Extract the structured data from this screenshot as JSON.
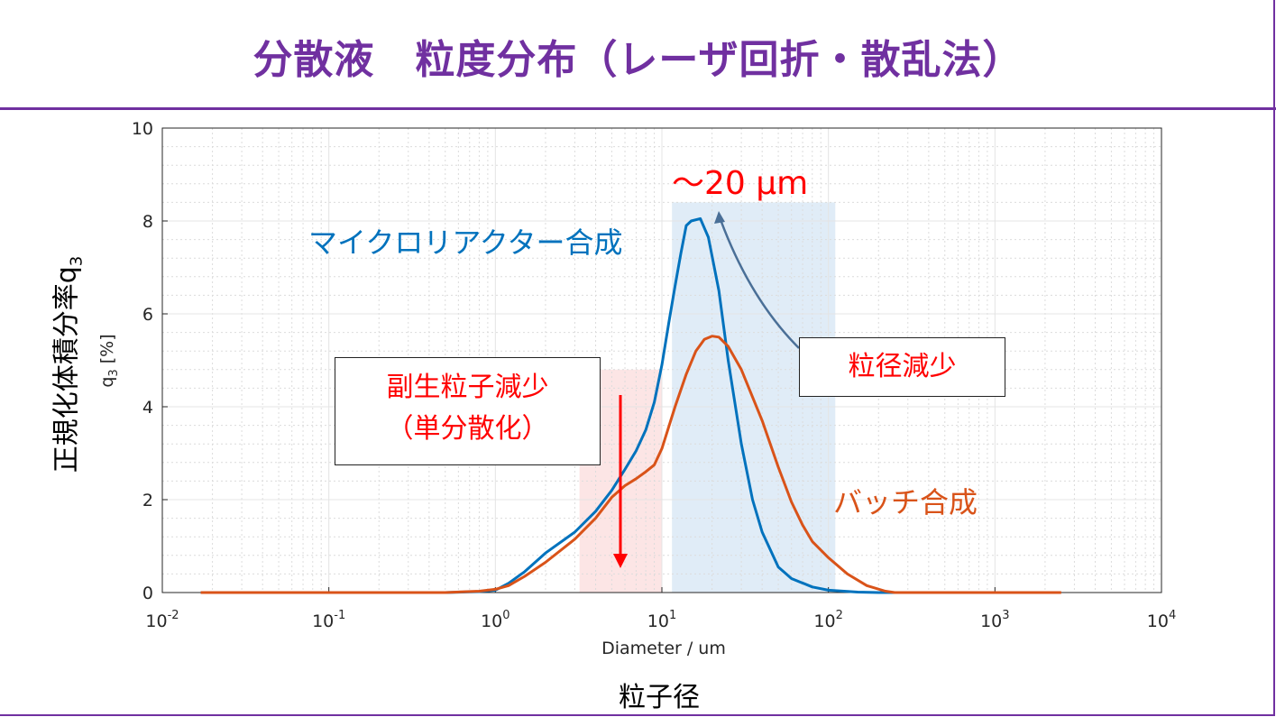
{
  "title": "分散液　粒度分布（レーザ回折・散乱法）",
  "y_axis_jp_main": "正規化体積分率q",
  "y_axis_jp_sub": "3",
  "x_axis_jp": "粒子径",
  "annotations": {
    "micro_label": "マイクロリアクター合成",
    "batch_label": "バッチ合成",
    "size_label": "～20 μm",
    "side_box_line1": "副生粒子減少",
    "side_box_line2": "（単分散化）",
    "size_box": "粒径減少"
  },
  "colors": {
    "title": "#7030a0",
    "micro": "#0072bd",
    "batch": "#d95319",
    "annotation": "#ff0000",
    "blue_band": "#dbe9f6",
    "red_band": "#fbe0e0"
  },
  "chart_data": {
    "type": "line",
    "title": "",
    "xlabel": "Diameter / um",
    "ylabel": "q3 [%]",
    "xscale": "log",
    "xlim": [
      0.01,
      10000
    ],
    "ylim": [
      0,
      10
    ],
    "grid": true,
    "xticks": [
      "10-2",
      "10-1",
      "100",
      "101",
      "102",
      "103",
      "104"
    ],
    "yticks": [
      "0",
      "2",
      "4",
      "6",
      "8",
      "10"
    ],
    "bands": [
      {
        "x0": 3.2,
        "x1": 10,
        "y1": 4.8,
        "color": "red"
      },
      {
        "x0": 11.5,
        "x1": 110,
        "y1": 8.4,
        "color": "blue"
      }
    ],
    "series": [
      {
        "name": "マイクロリアクター合成",
        "color": "#0072bd",
        "x": [
          0.017,
          0.1,
          0.5,
          0.8,
          1.0,
          1.2,
          1.5,
          2.0,
          3.0,
          4.0,
          5.0,
          6.0,
          7.0,
          8.0,
          9.0,
          10.0,
          11.0,
          12.0,
          13.0,
          14.0,
          15.0,
          17.0,
          19.0,
          22.0,
          25.0,
          30.0,
          35.0,
          40.0,
          50.0,
          60.0,
          80.0,
          100.0,
          150.0,
          200.0,
          250.0
        ],
        "y": [
          0.0,
          0.0,
          0.0,
          0.02,
          0.05,
          0.2,
          0.45,
          0.85,
          1.3,
          1.75,
          2.2,
          2.65,
          3.05,
          3.5,
          4.1,
          4.9,
          5.8,
          6.6,
          7.3,
          7.9,
          8.0,
          8.05,
          7.65,
          6.5,
          5.0,
          3.2,
          2.0,
          1.3,
          0.55,
          0.3,
          0.12,
          0.05,
          0.01,
          0.0,
          0.0
        ]
      },
      {
        "name": "バッチ合成",
        "color": "#d95319",
        "x": [
          0.017,
          0.1,
          0.5,
          0.8,
          1.0,
          1.2,
          1.5,
          2.0,
          3.0,
          4.0,
          5.0,
          6.0,
          7.0,
          8.0,
          9.0,
          10.0,
          12.0,
          14.0,
          16.0,
          18.0,
          20.0,
          22.0,
          25.0,
          30.0,
          40.0,
          50.0,
          60.0,
          70.0,
          80.0,
          100.0,
          130.0,
          170.0,
          220.0,
          250.0,
          500.0,
          1000.0,
          2500.0
        ],
        "y": [
          0.0,
          0.0,
          0.0,
          0.03,
          0.07,
          0.15,
          0.35,
          0.65,
          1.15,
          1.6,
          2.05,
          2.3,
          2.45,
          2.6,
          2.75,
          3.1,
          4.0,
          4.7,
          5.2,
          5.45,
          5.52,
          5.5,
          5.3,
          4.8,
          3.7,
          2.7,
          1.95,
          1.45,
          1.1,
          0.75,
          0.4,
          0.15,
          0.03,
          0.0,
          0.0,
          0.0,
          0.0
        ]
      }
    ]
  }
}
